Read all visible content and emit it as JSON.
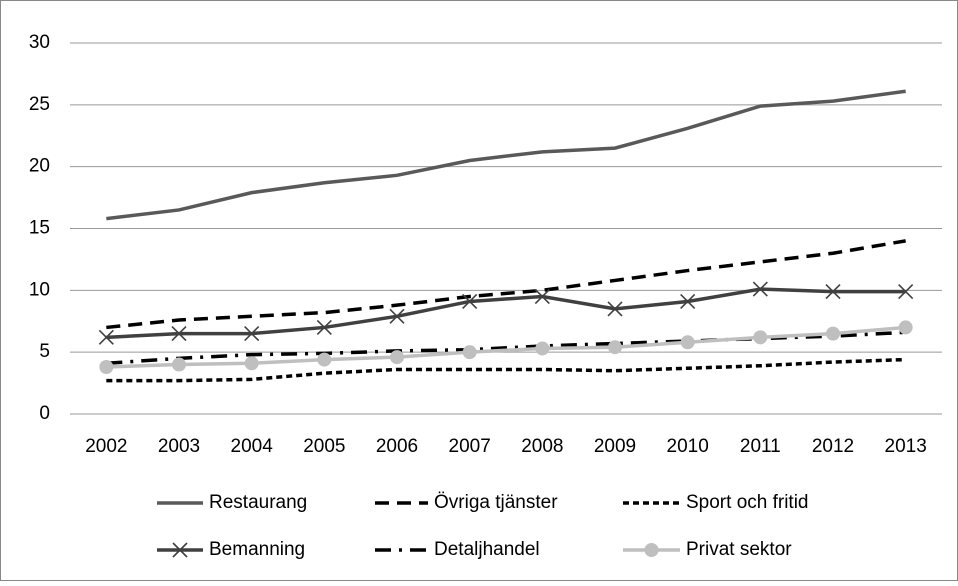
{
  "chart_data": {
    "type": "line",
    "categories": [
      "2002",
      "2003",
      "2004",
      "2005",
      "2006",
      "2007",
      "2008",
      "2009",
      "2010",
      "2011",
      "2012",
      "2013"
    ],
    "ylim": [
      0,
      30
    ],
    "yticks": [
      0,
      5,
      10,
      15,
      20,
      25,
      30
    ],
    "grid": true,
    "series": [
      {
        "name": "Restaurang",
        "color": "#595959",
        "style": "solid",
        "marker": "none",
        "values": [
          15.8,
          16.5,
          17.9,
          18.7,
          19.3,
          20.5,
          21.2,
          21.5,
          23.1,
          24.9,
          25.3,
          26.1
        ]
      },
      {
        "name": "Övriga tjänster",
        "color": "#000000",
        "style": "dashed",
        "marker": "none",
        "values": [
          7.0,
          7.6,
          7.9,
          8.2,
          8.8,
          9.5,
          10.0,
          10.8,
          11.6,
          12.3,
          13.0,
          14.0
        ]
      },
      {
        "name": "Sport och fritid",
        "color": "#000000",
        "style": "dotted",
        "marker": "none",
        "values": [
          2.7,
          2.7,
          2.8,
          3.3,
          3.6,
          3.6,
          3.6,
          3.5,
          3.7,
          3.9,
          4.2,
          4.4
        ]
      },
      {
        "name": "Bemanning",
        "color": "#404040",
        "style": "solid",
        "marker": "x",
        "values": [
          6.2,
          6.5,
          6.5,
          7.0,
          7.9,
          9.1,
          9.5,
          8.5,
          9.1,
          10.1,
          9.9,
          9.9
        ]
      },
      {
        "name": "Detaljhandel",
        "color": "#000000",
        "style": "dashdot",
        "marker": "none",
        "values": [
          4.1,
          4.5,
          4.8,
          4.9,
          5.1,
          5.2,
          5.5,
          5.7,
          5.9,
          6.1,
          6.3,
          6.6
        ]
      },
      {
        "name": "Privat sektor",
        "color": "#bfbfbf",
        "style": "solid",
        "marker": "circle",
        "values": [
          3.8,
          4.0,
          4.1,
          4.4,
          4.6,
          5.0,
          5.3,
          5.4,
          5.8,
          6.2,
          6.5,
          7.0
        ]
      }
    ]
  }
}
